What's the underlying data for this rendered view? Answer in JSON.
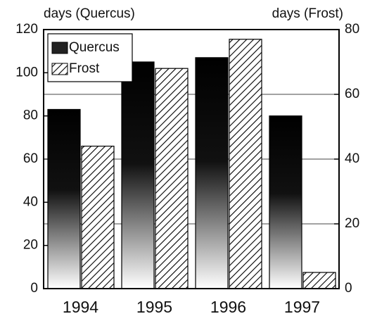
{
  "chart_data": {
    "type": "bar",
    "ylabel": "days (Quercus)",
    "y2label": "days (Frost)",
    "categories": [
      "1994",
      "1995",
      "1996",
      "1997"
    ],
    "series": [
      {
        "name": "Quercus",
        "color": "#000000",
        "fill_style": "gradient",
        "values": [
          83,
          105,
          107,
          80
        ]
      },
      {
        "name": "Frost",
        "color": "#000000",
        "fill_style": "hatch",
        "axis": "y2",
        "values": [
          44,
          68,
          77,
          5
        ]
      }
    ],
    "ylim": [
      0,
      120
    ],
    "yticks": [
      0,
      20,
      40,
      60,
      80,
      100,
      120
    ],
    "y2lim": [
      0,
      80
    ],
    "y2ticks": [
      0,
      20,
      40,
      60,
      80
    ],
    "grid": true,
    "legend": "upper left"
  }
}
